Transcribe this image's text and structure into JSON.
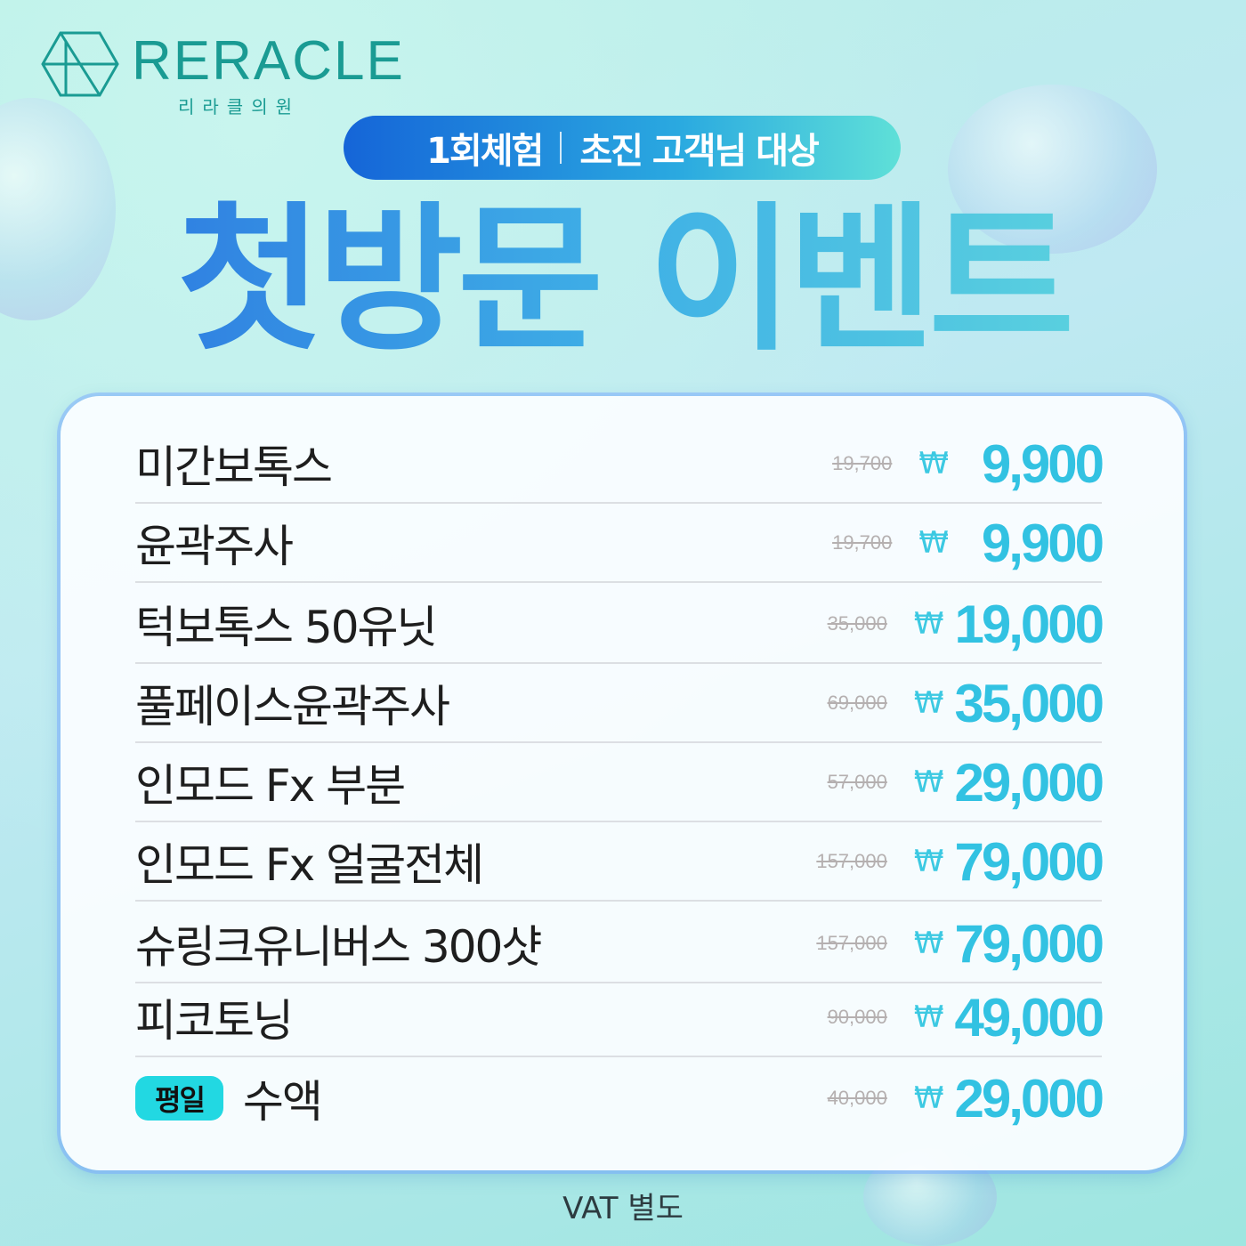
{
  "logo": {
    "brand": "RERACLE",
    "korean": "리라클의원"
  },
  "banner": {
    "left": "1회체험",
    "right": "초진 고객님 대상"
  },
  "title": "첫방문 이벤트",
  "currency": "₩",
  "items": [
    {
      "name": "미간보톡스",
      "original": "19,700",
      "price": "9,900"
    },
    {
      "name": "윤곽주사",
      "original": "19,700",
      "price": "9,900"
    },
    {
      "name": "턱보톡스 50유닛",
      "original": "35,000",
      "price": "19,000"
    },
    {
      "name": "풀페이스윤곽주사",
      "original": "69,000",
      "price": "35,000"
    },
    {
      "name": "인모드 Fx 부분",
      "original": "57,000",
      "price": "29,000"
    },
    {
      "name": "인모드 Fx 얼굴전체",
      "original": "157,000",
      "price": "79,000"
    },
    {
      "name": "슈링크유니버스 300샷",
      "original": "157,000",
      "price": "79,000"
    },
    {
      "name": "피코토닝",
      "original": "90,000",
      "price": "49,000"
    },
    {
      "badge": "평일",
      "name": "수액",
      "original": "40,000",
      "price": "29,000"
    }
  ],
  "footer": "VAT 별도",
  "colors": {
    "accent": "#32c2e2",
    "brand": "#1a9b93",
    "banner_start": "#1565d8"
  }
}
